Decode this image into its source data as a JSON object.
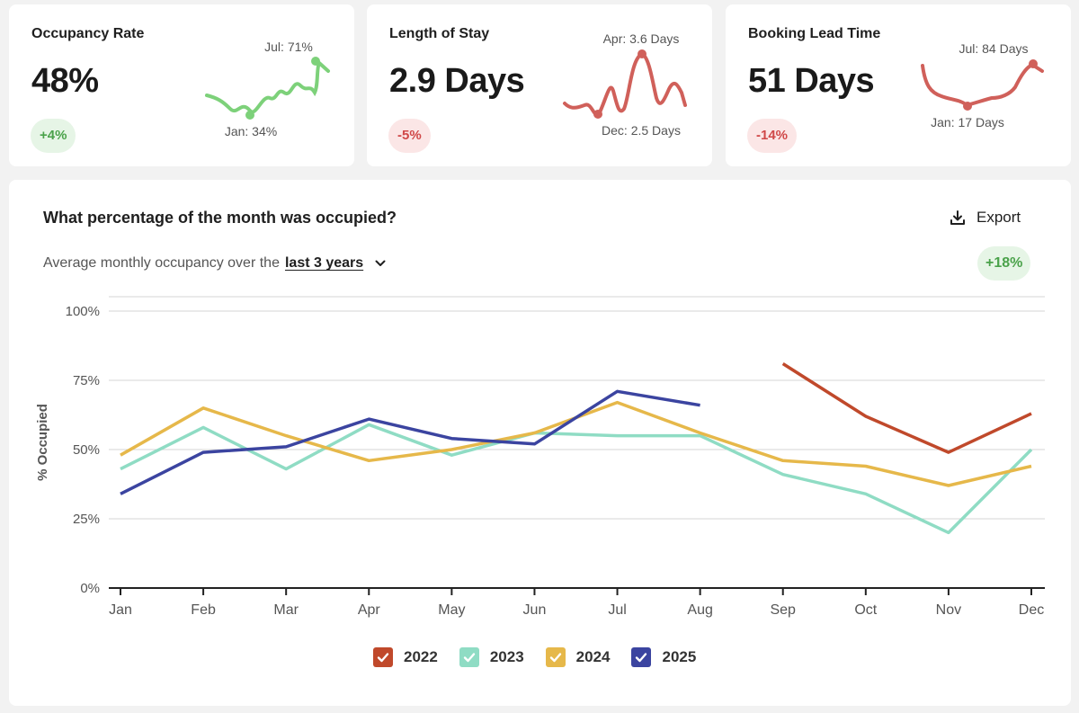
{
  "kpis": [
    {
      "title": "Occupancy Rate",
      "value": "48%",
      "badge": "+4%",
      "trend": "up",
      "color": "#7dd17a",
      "high_label": "Jul: 71%",
      "low_label": "Jan: 34%"
    },
    {
      "title": "Length of Stay",
      "value": "2.9 Days",
      "badge": "-5%",
      "trend": "down",
      "color": "#d0605a",
      "high_label": "Apr: 3.6 Days",
      "low_label": "Dec: 2.5 Days"
    },
    {
      "title": "Booking Lead Time",
      "value": "51 Days",
      "badge": "-14%",
      "trend": "down",
      "color": "#d0605a",
      "high_label": "Jul: 84 Days",
      "low_label": "Jan: 17 Days"
    }
  ],
  "main": {
    "title": "What percentage of the month was occupied?",
    "export_label": "Export",
    "subtitle_prefix": "Average monthly occupancy over the",
    "range_selector": "last 3 years",
    "trend_badge": "+18%"
  },
  "chart_data": {
    "type": "line",
    "title": "What percentage of the month was occupied?",
    "ylabel": "% Occupied",
    "xlabel": "",
    "ylim": [
      0,
      100
    ],
    "yticks": [
      "0%",
      "25%",
      "50%",
      "75%",
      "100%"
    ],
    "ytick_values": [
      0,
      25,
      50,
      75,
      100
    ],
    "categories": [
      "Jan",
      "Feb",
      "Mar",
      "Apr",
      "May",
      "Jun",
      "Jul",
      "Aug",
      "Sep",
      "Oct",
      "Nov",
      "Dec"
    ],
    "series": [
      {
        "name": "2022",
        "color": "#c0492b",
        "values": [
          null,
          null,
          null,
          null,
          null,
          null,
          null,
          null,
          81,
          62,
          49,
          63
        ]
      },
      {
        "name": "2023",
        "color": "#8fdcc4",
        "values": [
          43,
          58,
          43,
          59,
          48,
          56,
          55,
          55,
          41,
          34,
          20,
          50
        ]
      },
      {
        "name": "2024",
        "color": "#e6b84a",
        "values": [
          48,
          65,
          55,
          46,
          50,
          56,
          67,
          56,
          46,
          44,
          37,
          44
        ]
      },
      {
        "name": "2025",
        "color": "#3b44a0",
        "values": [
          34,
          49,
          51,
          61,
          54,
          52,
          71,
          66,
          null,
          null,
          null,
          null
        ]
      }
    ],
    "legend_position": "bottom-center",
    "grid": true
  }
}
